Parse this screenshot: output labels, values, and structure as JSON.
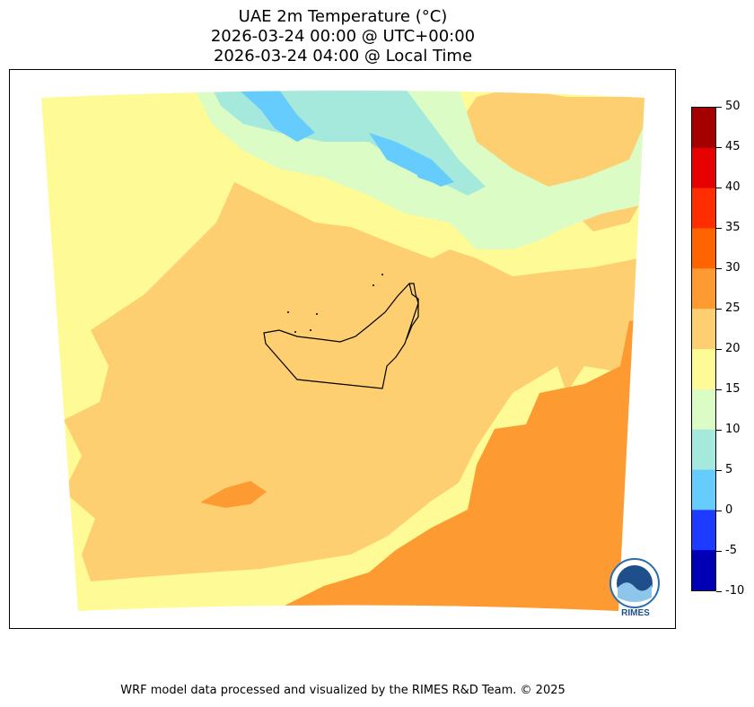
{
  "title": {
    "line1": "UAE 2m Temperature (°C)",
    "line2": "2026-03-24 00:00 @ UTC+00:00",
    "line3": "2026-03-24 04:00 @ Local Time"
  },
  "colorbar": {
    "levels": [
      "50",
      "45",
      "40",
      "35",
      "30",
      "25",
      "20",
      "15",
      "10",
      "5",
      "0",
      "-5",
      "-10"
    ],
    "bands": [
      {
        "range": "45-50",
        "color": "#a50000"
      },
      {
        "range": "40-45",
        "color": "#e60000"
      },
      {
        "range": "35-40",
        "color": "#ff2d00"
      },
      {
        "range": "30-35",
        "color": "#ff6400"
      },
      {
        "range": "25-30",
        "color": "#fd9a32"
      },
      {
        "range": "20-25",
        "color": "#fdcf70"
      },
      {
        "range": "15-20",
        "color": "#fefa96"
      },
      {
        "range": "10-15",
        "color": "#dbfcc4"
      },
      {
        "range": "5-10",
        "color": "#a4e9dc"
      },
      {
        "range": "0-5",
        "color": "#66ccfe"
      },
      {
        "range": "-5-0",
        "color": "#1e3cff"
      },
      {
        "range": "-10--5",
        "color": "#0000b4"
      }
    ]
  },
  "logo": {
    "text": "RIMES",
    "icon": "rimes-logo-icon"
  },
  "footer": "WRF model data processed and visualized by the RIMES R&D Team. © 2025"
}
